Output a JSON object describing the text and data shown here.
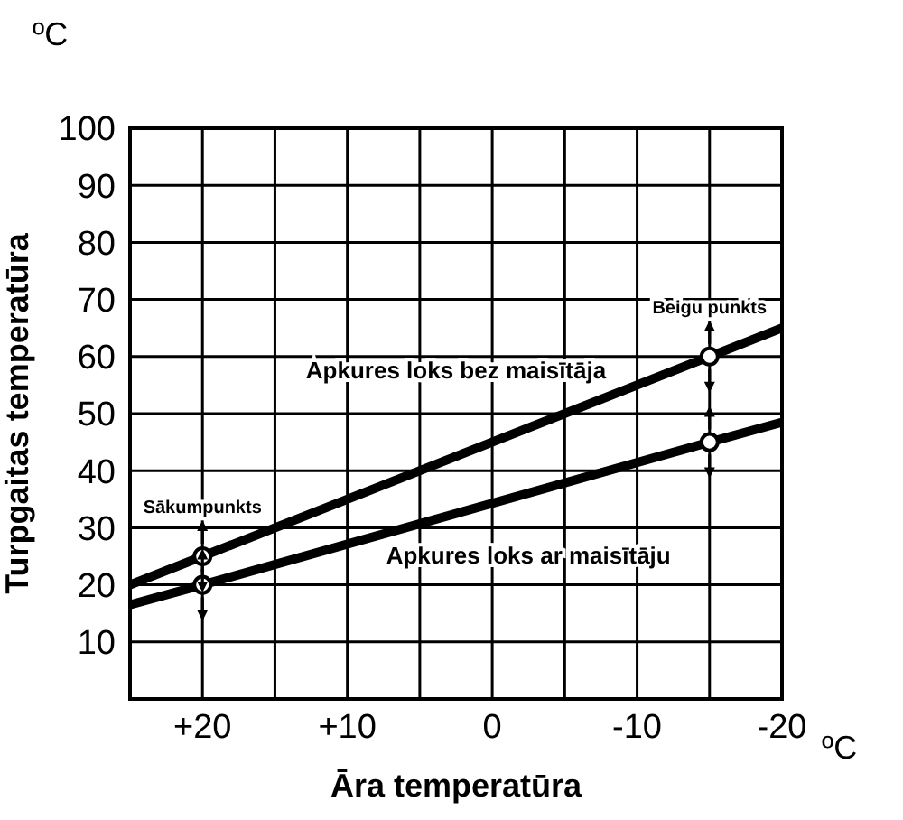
{
  "chart_data": {
    "type": "line",
    "xlabel": "Āra temperatūra",
    "ylabel": "Turpgaitas temperatūra",
    "xlim": [
      25,
      -20
    ],
    "xticks": [
      {
        "value": 25,
        "label": null
      },
      {
        "value": 20,
        "label": "+20"
      },
      {
        "value": 15,
        "label": null
      },
      {
        "value": 10,
        "label": "+10"
      },
      {
        "value": 5,
        "label": null
      },
      0,
      {
        "value": -5,
        "label": null
      },
      -10,
      {
        "value": -15,
        "label": null
      },
      -20
    ],
    "ylim": [
      0,
      100
    ],
    "yticks": [
      {
        "value": 0,
        "label": null
      },
      10,
      20,
      30,
      40,
      50,
      60,
      70,
      80,
      90,
      100
    ],
    "grid": true,
    "line_style": "solid",
    "marker": "none",
    "series": [
      {
        "name": "Apkures loks bez maisītāja",
        "color": "#000000",
        "x": [
          25,
          20,
          -15,
          -20
        ],
        "values": [
          20,
          25,
          60,
          65
        ]
      },
      {
        "name": "Apkures loks ar maisītāju",
        "color": "#000000",
        "x": [
          25,
          20,
          -15,
          -20
        ],
        "values": [
          16.5,
          20,
          45,
          48.5
        ]
      },
      {
        "type": "scatter",
        "marker": "circle",
        "color": "#ffffff",
        "x": [
          20,
          20,
          -15,
          -15
        ],
        "values": [
          25,
          20,
          60,
          45
        ]
      }
    ],
    "annotations": [
      "ºC",
      "ºC",
      "Sākumpunkts",
      "Beigu punkts"
    ]
  }
}
